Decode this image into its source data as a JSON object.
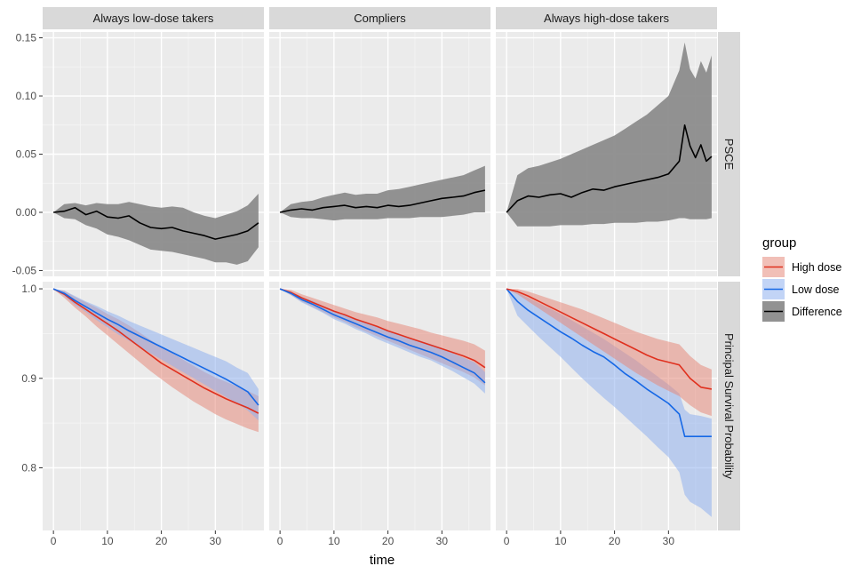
{
  "chart_data": {
    "type": "line",
    "xlabel": "time",
    "facet_columns": [
      "Always low-dose takers",
      "Compliers",
      "Always high-dose takers"
    ],
    "facet_rows": [
      "PSCE",
      "Principal Survival Probability"
    ],
    "xlim": [
      -2,
      39
    ],
    "x_ticks": [
      0,
      10,
      20,
      30
    ],
    "rows": [
      {
        "name": "PSCE",
        "ylim": [
          -0.055,
          0.155
        ],
        "y_ticks": [
          -0.05,
          0.0,
          0.05,
          0.1,
          0.15
        ],
        "y_tick_labels": [
          "-0.05",
          "0.00",
          "0.05",
          "0.10",
          "0.15"
        ]
      },
      {
        "name": "Principal Survival Probability",
        "ylim": [
          0.73,
          1.008
        ],
        "y_ticks": [
          0.8,
          0.9,
          1.0
        ],
        "y_tick_labels": [
          "0.8",
          "0.9",
          "1.0"
        ]
      }
    ],
    "legend": {
      "title": "group",
      "position": "right",
      "items": [
        {
          "label": "High dose",
          "color": "#e0301e",
          "fill": "#e58a7c"
        },
        {
          "label": "Low dose",
          "color": "#1668e6",
          "fill": "#8fb0ef"
        },
        {
          "label": "Difference",
          "color": "#000000",
          "fill": "#8c8c8c"
        }
      ]
    },
    "panels": [
      {
        "row": 0,
        "col": 0,
        "series": [
          {
            "name": "Difference",
            "x": [
              0,
              2,
              4,
              6,
              8,
              10,
              12,
              14,
              16,
              18,
              20,
              22,
              24,
              26,
              28,
              30,
              32,
              34,
              36,
              38
            ],
            "y": [
              0.0,
              0.001,
              0.004,
              -0.002,
              0.001,
              -0.004,
              -0.005,
              -0.003,
              -0.009,
              -0.013,
              -0.014,
              -0.013,
              -0.016,
              -0.018,
              -0.02,
              -0.023,
              -0.021,
              -0.019,
              -0.016,
              -0.009
            ],
            "lower": [
              0.0,
              -0.005,
              -0.006,
              -0.011,
              -0.014,
              -0.019,
              -0.021,
              -0.024,
              -0.028,
              -0.032,
              -0.033,
              -0.034,
              -0.036,
              -0.038,
              -0.04,
              -0.043,
              -0.043,
              -0.045,
              -0.042,
              -0.03
            ],
            "upper": [
              0.0,
              0.007,
              0.008,
              0.006,
              0.008,
              0.007,
              0.007,
              0.009,
              0.007,
              0.005,
              0.004,
              0.005,
              0.004,
              0.0,
              -0.003,
              -0.005,
              -0.002,
              0.001,
              0.006,
              0.016
            ]
          }
        ]
      },
      {
        "row": 0,
        "col": 1,
        "series": [
          {
            "name": "Difference",
            "x": [
              0,
              2,
              4,
              6,
              8,
              10,
              12,
              14,
              16,
              18,
              20,
              22,
              24,
              26,
              28,
              30,
              32,
              34,
              36,
              38
            ],
            "y": [
              0.0,
              0.002,
              0.003,
              0.002,
              0.004,
              0.005,
              0.006,
              0.004,
              0.005,
              0.004,
              0.006,
              0.005,
              0.006,
              0.008,
              0.01,
              0.012,
              0.013,
              0.014,
              0.017,
              0.019
            ],
            "lower": [
              0.0,
              -0.004,
              -0.005,
              -0.005,
              -0.006,
              -0.007,
              -0.006,
              -0.006,
              -0.006,
              -0.006,
              -0.005,
              -0.005,
              -0.005,
              -0.004,
              -0.004,
              -0.004,
              -0.003,
              -0.002,
              0.0,
              0.0
            ],
            "upper": [
              0.0,
              0.007,
              0.009,
              0.01,
              0.013,
              0.015,
              0.017,
              0.015,
              0.016,
              0.016,
              0.019,
              0.02,
              0.022,
              0.024,
              0.026,
              0.028,
              0.03,
              0.032,
              0.036,
              0.04
            ]
          }
        ]
      },
      {
        "row": 0,
        "col": 2,
        "series": [
          {
            "name": "Difference",
            "x": [
              0,
              2,
              4,
              6,
              8,
              10,
              12,
              14,
              16,
              18,
              20,
              22,
              24,
              26,
              28,
              30,
              32,
              33,
              34,
              35,
              36,
              37,
              38
            ],
            "y": [
              0.0,
              0.01,
              0.014,
              0.013,
              0.015,
              0.016,
              0.013,
              0.017,
              0.02,
              0.019,
              0.022,
              0.024,
              0.026,
              0.028,
              0.03,
              0.033,
              0.044,
              0.075,
              0.057,
              0.047,
              0.058,
              0.044,
              0.048
            ],
            "lower": [
              0.0,
              -0.012,
              -0.012,
              -0.012,
              -0.012,
              -0.011,
              -0.011,
              -0.011,
              -0.01,
              -0.01,
              -0.009,
              -0.009,
              -0.009,
              -0.008,
              -0.008,
              -0.007,
              -0.005,
              -0.005,
              -0.006,
              -0.006,
              -0.006,
              -0.006,
              -0.005
            ],
            "upper": [
              0.0,
              0.032,
              0.038,
              0.04,
              0.043,
              0.046,
              0.05,
              0.054,
              0.058,
              0.062,
              0.066,
              0.072,
              0.078,
              0.084,
              0.092,
              0.1,
              0.122,
              0.146,
              0.123,
              0.115,
              0.13,
              0.12,
              0.135
            ]
          }
        ]
      },
      {
        "row": 1,
        "col": 0,
        "series": [
          {
            "name": "High dose",
            "x": [
              0,
              2,
              4,
              6,
              8,
              10,
              12,
              14,
              16,
              18,
              20,
              22,
              24,
              26,
              28,
              30,
              32,
              34,
              36,
              38
            ],
            "y": [
              1.0,
              0.994,
              0.985,
              0.977,
              0.969,
              0.961,
              0.953,
              0.944,
              0.935,
              0.926,
              0.917,
              0.91,
              0.903,
              0.896,
              0.889,
              0.883,
              0.877,
              0.872,
              0.867,
              0.861
            ],
            "lower": [
              1.0,
              0.99,
              0.979,
              0.969,
              0.958,
              0.948,
              0.938,
              0.928,
              0.918,
              0.908,
              0.899,
              0.89,
              0.882,
              0.874,
              0.867,
              0.86,
              0.854,
              0.849,
              0.844,
              0.84
            ],
            "upper": [
              1.0,
              0.998,
              0.991,
              0.985,
              0.979,
              0.972,
              0.966,
              0.959,
              0.951,
              0.943,
              0.935,
              0.928,
              0.921,
              0.914,
              0.907,
              0.901,
              0.896,
              0.891,
              0.886,
              0.88
            ]
          },
          {
            "name": "Low dose",
            "x": [
              0,
              2,
              4,
              6,
              8,
              10,
              12,
              14,
              16,
              18,
              20,
              22,
              24,
              26,
              28,
              30,
              32,
              34,
              36,
              38
            ],
            "y": [
              1.0,
              0.995,
              0.987,
              0.98,
              0.973,
              0.966,
              0.96,
              0.953,
              0.947,
              0.941,
              0.935,
              0.929,
              0.923,
              0.917,
              0.911,
              0.905,
              0.899,
              0.892,
              0.885,
              0.87
            ],
            "lower": [
              1.0,
              0.992,
              0.982,
              0.974,
              0.965,
              0.957,
              0.949,
              0.942,
              0.935,
              0.928,
              0.921,
              0.914,
              0.907,
              0.9,
              0.893,
              0.886,
              0.879,
              0.872,
              0.864,
              0.853
            ],
            "upper": [
              1.0,
              0.998,
              0.992,
              0.986,
              0.981,
              0.975,
              0.97,
              0.964,
              0.959,
              0.954,
              0.949,
              0.944,
              0.939,
              0.934,
              0.929,
              0.924,
              0.919,
              0.912,
              0.906,
              0.888
            ]
          }
        ]
      },
      {
        "row": 1,
        "col": 1,
        "series": [
          {
            "name": "High dose",
            "x": [
              0,
              2,
              4,
              6,
              8,
              10,
              12,
              14,
              16,
              18,
              20,
              22,
              24,
              26,
              28,
              30,
              32,
              34,
              36,
              38
            ],
            "y": [
              1.0,
              0.996,
              0.99,
              0.985,
              0.98,
              0.975,
              0.971,
              0.966,
              0.962,
              0.958,
              0.953,
              0.949,
              0.945,
              0.941,
              0.937,
              0.933,
              0.929,
              0.925,
              0.92,
              0.912
            ],
            "lower": [
              1.0,
              0.993,
              0.986,
              0.98,
              0.974,
              0.968,
              0.963,
              0.957,
              0.952,
              0.947,
              0.942,
              0.937,
              0.932,
              0.927,
              0.922,
              0.917,
              0.912,
              0.907,
              0.901,
              0.892
            ],
            "upper": [
              1.0,
              0.999,
              0.994,
              0.99,
              0.986,
              0.982,
              0.978,
              0.974,
              0.971,
              0.968,
              0.964,
              0.961,
              0.958,
              0.955,
              0.951,
              0.948,
              0.945,
              0.942,
              0.938,
              0.931
            ]
          },
          {
            "name": "Low dose",
            "x": [
              0,
              2,
              4,
              6,
              8,
              10,
              12,
              14,
              16,
              18,
              20,
              22,
              24,
              26,
              28,
              30,
              32,
              34,
              36,
              38
            ],
            "y": [
              1.0,
              0.995,
              0.988,
              0.983,
              0.977,
              0.971,
              0.966,
              0.961,
              0.956,
              0.951,
              0.946,
              0.942,
              0.937,
              0.933,
              0.929,
              0.924,
              0.918,
              0.912,
              0.906,
              0.895
            ],
            "lower": [
              1.0,
              0.993,
              0.985,
              0.979,
              0.973,
              0.966,
              0.961,
              0.955,
              0.95,
              0.944,
              0.939,
              0.934,
              0.929,
              0.924,
              0.92,
              0.914,
              0.908,
              0.901,
              0.894,
              0.883
            ],
            "upper": [
              1.0,
              0.997,
              0.991,
              0.987,
              0.981,
              0.976,
              0.971,
              0.967,
              0.962,
              0.958,
              0.953,
              0.95,
              0.945,
              0.942,
              0.938,
              0.934,
              0.928,
              0.923,
              0.918,
              0.907
            ]
          }
        ]
      },
      {
        "row": 1,
        "col": 2,
        "series": [
          {
            "name": "Low dose",
            "x": [
              0,
              2,
              4,
              6,
              8,
              10,
              12,
              14,
              16,
              18,
              20,
              22,
              24,
              26,
              28,
              30,
              32,
              33,
              34,
              36,
              38
            ],
            "y": [
              1.0,
              0.986,
              0.976,
              0.968,
              0.96,
              0.952,
              0.945,
              0.937,
              0.93,
              0.924,
              0.915,
              0.905,
              0.897,
              0.888,
              0.88,
              0.872,
              0.86,
              0.835,
              0.835,
              0.835,
              0.835
            ],
            "lower": [
              1.0,
              0.97,
              0.958,
              0.946,
              0.935,
              0.924,
              0.912,
              0.9,
              0.889,
              0.878,
              0.868,
              0.857,
              0.846,
              0.835,
              0.823,
              0.812,
              0.795,
              0.77,
              0.762,
              0.755,
              0.745
            ],
            "upper": [
              1.0,
              0.996,
              0.99,
              0.984,
              0.978,
              0.972,
              0.965,
              0.958,
              0.951,
              0.944,
              0.936,
              0.928,
              0.92,
              0.911,
              0.902,
              0.893,
              0.883,
              0.865,
              0.86,
              0.858,
              0.855
            ]
          },
          {
            "name": "High dose",
            "x": [
              0,
              2,
              4,
              6,
              8,
              10,
              12,
              14,
              16,
              18,
              20,
              22,
              24,
              26,
              28,
              30,
              32,
              34,
              36,
              38
            ],
            "y": [
              1.0,
              0.997,
              0.992,
              0.986,
              0.98,
              0.974,
              0.968,
              0.962,
              0.956,
              0.95,
              0.944,
              0.938,
              0.932,
              0.926,
              0.921,
              0.918,
              0.915,
              0.9,
              0.89,
              0.888
            ],
            "lower": [
              1.0,
              0.994,
              0.986,
              0.978,
              0.97,
              0.962,
              0.954,
              0.946,
              0.938,
              0.93,
              0.922,
              0.914,
              0.906,
              0.899,
              0.892,
              0.886,
              0.88,
              0.87,
              0.862,
              0.858
            ],
            "upper": [
              1.0,
              1.0,
              0.997,
              0.993,
              0.989,
              0.985,
              0.981,
              0.977,
              0.972,
              0.967,
              0.962,
              0.957,
              0.952,
              0.948,
              0.944,
              0.941,
              0.938,
              0.925,
              0.915,
              0.91
            ]
          }
        ]
      }
    ]
  }
}
